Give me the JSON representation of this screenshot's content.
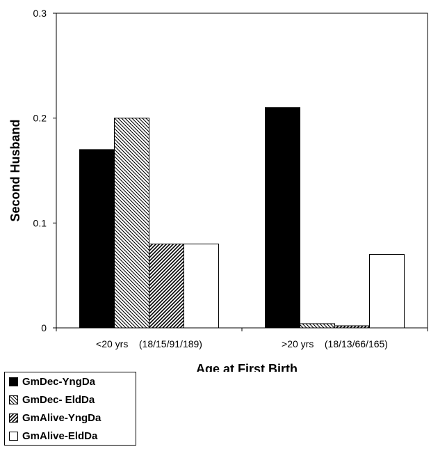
{
  "chart_data": {
    "type": "bar",
    "title": "",
    "xlabel": "Age at First Birth",
    "ylabel": "Second Husband",
    "ylim": [
      0,
      0.3
    ],
    "yticks": [
      "0",
      "0.1",
      "0.2",
      "0.3"
    ],
    "grid": false,
    "legend_position": "bottom-left",
    "categories": [
      "<20 yrs    (18/15/91/189)",
      ">20 yrs    (18/13/66/165)"
    ],
    "series": [
      {
        "name": "GmDec-YngDa",
        "values": [
          0.17,
          0.21
        ],
        "fill": "solid-black"
      },
      {
        "name": "GmDec- EldDa",
        "values": [
          0.2,
          0.004
        ],
        "fill": "hatch-back-diagonal"
      },
      {
        "name": "GmAlive-YngDa",
        "values": [
          0.08,
          0.002
        ],
        "fill": "hatch-forward-diagonal"
      },
      {
        "name": "GmAlive-EldDa",
        "values": [
          0.08,
          0.07
        ],
        "fill": "white"
      }
    ],
    "colors": {
      "bar_stroke": "#000000",
      "solid": "#000000",
      "white": "#ffffff"
    }
  }
}
